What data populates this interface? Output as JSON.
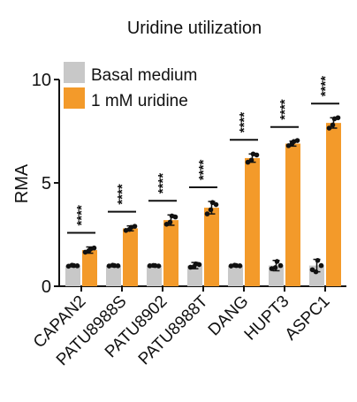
{
  "chart_data": {
    "type": "bar",
    "title": "Uridine utilization",
    "xlabel": "",
    "ylabel": "RMA",
    "ylim": [
      0,
      10
    ],
    "yticks": [
      "0",
      "5",
      "10"
    ],
    "categories": [
      "CAPAN2",
      "PATU8988S",
      "PATU8902",
      "PATU8988T",
      "DANG",
      "HUPT3",
      "ASPC1"
    ],
    "series": [
      {
        "name": "Basal medium",
        "color": "#c8c8c8",
        "values": [
          1.0,
          1.0,
          1.0,
          1.0,
          1.0,
          1.0,
          1.0
        ],
        "errors": [
          0.05,
          0.04,
          0.04,
          0.15,
          0.04,
          0.25,
          0.3
        ],
        "points": [
          [
            0.97,
            1.0,
            1.02,
            0.99
          ],
          [
            0.98,
            1.0,
            1.02,
            0.99
          ],
          [
            0.99,
            1.0,
            1.01,
            0.98
          ],
          [
            0.92,
            1.08,
            0.95,
            1.05
          ],
          [
            0.98,
            1.0,
            1.02,
            0.99
          ],
          [
            0.85,
            1.2,
            0.9,
            1.0
          ],
          [
            0.8,
            1.25,
            0.7,
            1.0
          ]
        ]
      },
      {
        "name": "1 mM uridine",
        "color": "#f39a2a",
        "values": [
          1.75,
          2.8,
          3.2,
          3.8,
          6.2,
          6.9,
          7.9
        ],
        "errors": [
          0.15,
          0.12,
          0.25,
          0.3,
          0.2,
          0.12,
          0.25
        ],
        "points": [
          [
            1.65,
            1.8,
            1.72,
            1.85
          ],
          [
            2.7,
            2.85,
            2.75,
            2.9
          ],
          [
            3.0,
            3.4,
            3.1,
            3.35
          ],
          [
            3.5,
            4.05,
            3.7,
            3.95
          ],
          [
            6.0,
            6.4,
            6.1,
            6.35
          ],
          [
            6.8,
            7.0,
            6.9,
            7.05
          ],
          [
            7.65,
            8.1,
            7.8,
            8.15
          ]
        ]
      }
    ],
    "significance": [
      "****",
      "****",
      "****",
      "****",
      "****",
      "****",
      "****"
    ],
    "legend_position": "top-left"
  }
}
